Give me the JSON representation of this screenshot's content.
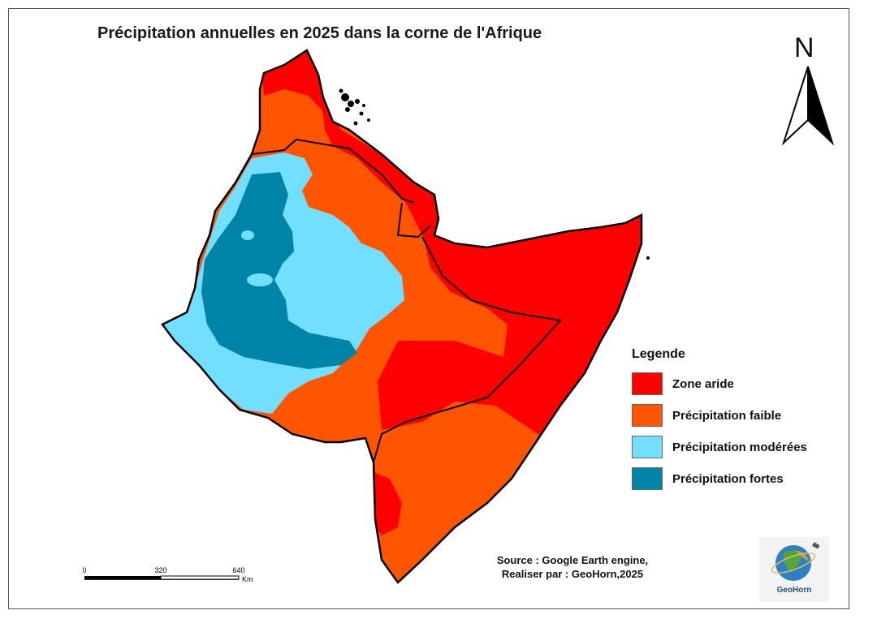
{
  "title": "Précipitation annuelles en 2025 dans la corne de l'Afrique",
  "north_label": "N",
  "legend": {
    "title": "Legende",
    "items": [
      {
        "label": "Zone aride",
        "color": "#ff0000"
      },
      {
        "label": "Précipitation faible",
        "color": "#ff5500"
      },
      {
        "label": "Précipitation modérées",
        "color": "#73dfff"
      },
      {
        "label": "Précipitation fortes",
        "color": "#0084a8"
      }
    ]
  },
  "source": {
    "line1": "Source : Google Earth engine,",
    "line2": "Realiser par : GeoHorn,2025"
  },
  "scale": {
    "ticks": [
      "0",
      "320",
      "640"
    ],
    "unit": "Km"
  },
  "logo": {
    "text": "GeoHorn"
  }
}
